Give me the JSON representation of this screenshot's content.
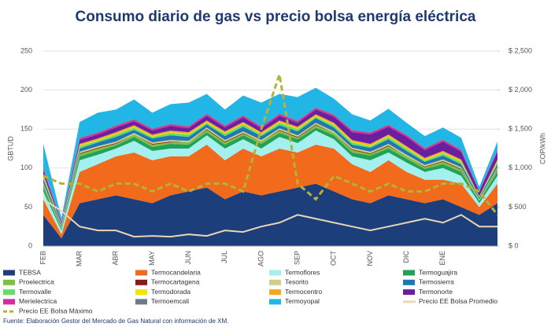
{
  "chart_data": {
    "type": "stacked-area",
    "title": "Consumo diario de gas vs precio bolsa energía eléctrica",
    "y_label": "GBTUD",
    "y2_label": "COP/kWh",
    "source": "Fuente: Elaboración Gestor del Mercado de Gas Natural con información de XM.",
    "categories": [
      "FEB",
      null,
      "MAR",
      null,
      "ABR",
      null,
      "MAY",
      null,
      "JUN",
      null,
      "JUL",
      null,
      "AGO",
      null,
      "SEP",
      null,
      "OCT",
      null,
      "NOV",
      null,
      "DIC",
      null,
      "ENE",
      null,
      null,
      null
    ],
    "ylim": [
      0,
      250
    ],
    "yticks": [
      0,
      50,
      100,
      150,
      200,
      250
    ],
    "y2lim": [
      0,
      2500
    ],
    "y2ticks": [
      {
        "value": 0,
        "label": "$ 0"
      },
      {
        "value": 500,
        "label": "$ 500"
      },
      {
        "value": 1000,
        "label": "$ 1,000"
      },
      {
        "value": 1500,
        "label": "$ 1,500"
      },
      {
        "value": 2000,
        "label": "$ 2,000"
      },
      {
        "value": 2500,
        "label": "$ 2,500"
      }
    ],
    "grid": true,
    "series": [
      {
        "name": "TEBSA",
        "color": "#1c3f7c",
        "values": [
          40,
          10,
          55,
          60,
          65,
          60,
          55,
          65,
          70,
          75,
          60,
          70,
          65,
          70,
          75,
          80,
          70,
          60,
          55,
          65,
          60,
          55,
          60,
          50,
          40,
          55
        ]
      },
      {
        "name": "Termocandelaria",
        "color": "#f26a1b",
        "values": [
          20,
          5,
          40,
          45,
          50,
          60,
          55,
          50,
          45,
          55,
          50,
          55,
          50,
          55,
          45,
          50,
          55,
          45,
          40,
          45,
          35,
          30,
          25,
          30,
          10,
          25
        ]
      },
      {
        "name": "Termoflores",
        "color": "#a4f0ee",
        "values": [
          10,
          5,
          15,
          12,
          10,
          15,
          12,
          10,
          10,
          12,
          15,
          12,
          10,
          15,
          12,
          18,
          12,
          10,
          15,
          10,
          12,
          10,
          15,
          10,
          5,
          10
        ]
      },
      {
        "name": "Termoguajira",
        "color": "#23a05a",
        "values": [
          5,
          2,
          5,
          5,
          4,
          5,
          5,
          6,
          5,
          4,
          5,
          5,
          6,
          5,
          5,
          4,
          5,
          5,
          6,
          5,
          5,
          4,
          5,
          5,
          3,
          5
        ]
      },
      {
        "name": "Proelectrica",
        "color": "#7cc142",
        "values": [
          3,
          1,
          3,
          3,
          2,
          3,
          3,
          2,
          3,
          3,
          3,
          2,
          3,
          3,
          2,
          3,
          3,
          3,
          2,
          3,
          3,
          2,
          3,
          3,
          1,
          3
        ]
      },
      {
        "name": "Termocartagena",
        "color": "#8b1a1a",
        "values": [
          1,
          0,
          1,
          1,
          1,
          0,
          1,
          1,
          0,
          1,
          1,
          1,
          0,
          1,
          1,
          1,
          0,
          1,
          1,
          1,
          0,
          1,
          1,
          1,
          0,
          1
        ]
      },
      {
        "name": "Tesorito",
        "color": "#cfcf86",
        "values": [
          2,
          1,
          2,
          2,
          2,
          2,
          2,
          2,
          2,
          2,
          2,
          2,
          2,
          2,
          2,
          2,
          2,
          2,
          2,
          2,
          2,
          2,
          2,
          2,
          1,
          2
        ]
      },
      {
        "name": "Termosierra",
        "color": "#1f78b4",
        "values": [
          5,
          2,
          4,
          5,
          6,
          4,
          5,
          6,
          5,
          4,
          5,
          6,
          5,
          4,
          5,
          6,
          5,
          4,
          5,
          6,
          5,
          4,
          5,
          4,
          2,
          4
        ]
      },
      {
        "name": "Termovalle",
        "color": "#66dd66",
        "values": [
          3,
          1,
          3,
          2,
          3,
          3,
          2,
          3,
          3,
          2,
          3,
          3,
          2,
          3,
          3,
          2,
          3,
          3,
          2,
          3,
          3,
          2,
          3,
          3,
          1,
          3
        ]
      },
      {
        "name": "Termodorada",
        "color": "#f2e600",
        "values": [
          1,
          0,
          1,
          1,
          1,
          1,
          1,
          1,
          1,
          1,
          1,
          1,
          1,
          1,
          1,
          1,
          1,
          1,
          1,
          1,
          1,
          1,
          1,
          1,
          0,
          1
        ]
      },
      {
        "name": "Termocentro",
        "color": "#f5a623",
        "values": [
          2,
          1,
          2,
          2,
          2,
          2,
          2,
          2,
          2,
          2,
          2,
          2,
          2,
          2,
          2,
          2,
          2,
          2,
          2,
          2,
          2,
          2,
          2,
          2,
          1,
          2
        ]
      },
      {
        "name": "Termonorte",
        "color": "#6a1fa0",
        "values": [
          5,
          2,
          5,
          5,
          6,
          5,
          5,
          6,
          5,
          6,
          5,
          6,
          5,
          6,
          5,
          6,
          8,
          10,
          12,
          10,
          12,
          10,
          12,
          10,
          6,
          10
        ]
      },
      {
        "name": "Merielectrica",
        "color": "#d62aa0",
        "values": [
          3,
          1,
          2,
          2,
          2,
          2,
          2,
          2,
          2,
          2,
          2,
          2,
          2,
          2,
          2,
          2,
          2,
          2,
          2,
          2,
          2,
          2,
          2,
          2,
          1,
          2
        ]
      },
      {
        "name": "Termoemcali",
        "color": "#6c7a89",
        "values": [
          1,
          0,
          1,
          1,
          1,
          1,
          1,
          1,
          1,
          1,
          1,
          1,
          1,
          1,
          1,
          1,
          1,
          1,
          1,
          1,
          1,
          1,
          1,
          1,
          0,
          1
        ]
      },
      {
        "name": "Termoyopal",
        "color": "#22b6e6",
        "values": [
          30,
          5,
          20,
          25,
          20,
          25,
          20,
          25,
          30,
          25,
          20,
          25,
          30,
          25,
          30,
          25,
          20,
          20,
          15,
          20,
          15,
          15,
          15,
          15,
          5,
          10
        ]
      },
      {
        "name": "Precio EE Bolsa Promedio",
        "color": "#e9d6b4",
        "axis": "y2",
        "style": "solid",
        "values": [
          600,
          450,
          250,
          200,
          200,
          120,
          130,
          120,
          150,
          130,
          200,
          180,
          250,
          300,
          400,
          350,
          300,
          250,
          200,
          250,
          300,
          350,
          300,
          400,
          250,
          250
        ]
      },
      {
        "name": "Precio EE Bolsa Máximo",
        "color": "#b3b33a",
        "axis": "y2",
        "style": "dashed",
        "values": [
          900,
          800,
          800,
          700,
          800,
          800,
          700,
          800,
          700,
          800,
          800,
          700,
          1500,
          2200,
          800,
          600,
          900,
          800,
          700,
          800,
          700,
          700,
          800,
          800,
          700,
          400
        ]
      }
    ]
  }
}
